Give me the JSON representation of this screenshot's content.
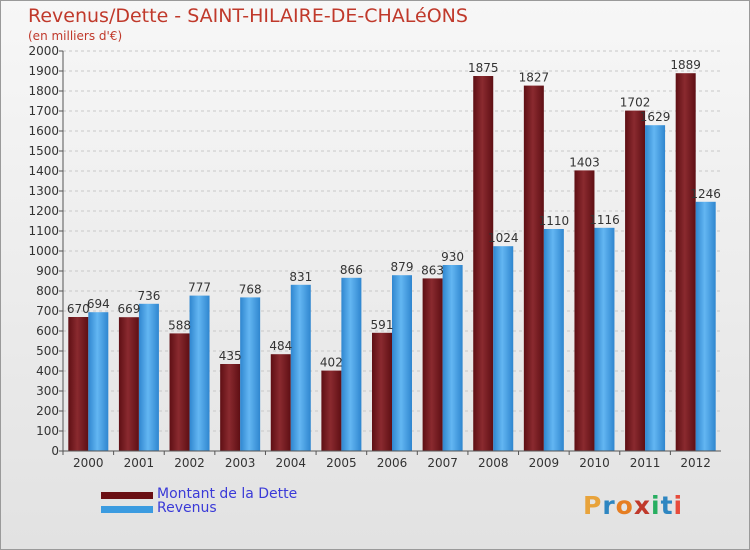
{
  "title": "Revenus/Dette - SAINT-HILAIRE-DE-CHALéONS",
  "subtitle": "(en milliers d'€)",
  "logo": {
    "letters": [
      "P",
      "r",
      "o",
      "x",
      "i",
      "t",
      "i"
    ],
    "colors": [
      "#e8a33b",
      "#2e86c1",
      "#e67e22",
      "#c0392b",
      "#27ae60",
      "#2e86c1",
      "#e74c3c"
    ]
  },
  "chart_data": {
    "type": "bar",
    "title": "Revenus/Dette - SAINT-HILAIRE-DE-CHALéONS",
    "subtitle": "(en milliers d'€)",
    "categories": [
      "2000",
      "2001",
      "2002",
      "2003",
      "2004",
      "2005",
      "2006",
      "2007",
      "2008",
      "2009",
      "2010",
      "2011",
      "2012"
    ],
    "series": [
      {
        "name": "Montant de la Dette",
        "color": "#7a1a1f",
        "values": [
          670,
          669,
          588,
          435,
          484,
          402,
          591,
          863,
          1875,
          1827,
          1403,
          1702,
          1889
        ]
      },
      {
        "name": "Revenus",
        "color": "#3b9be0",
        "values": [
          694,
          736,
          777,
          768,
          831,
          866,
          879,
          930,
          1024,
          1110,
          1116,
          1629,
          1246
        ]
      }
    ],
    "ylim": [
      0,
      2000
    ],
    "ytick_step": 100,
    "grid": true,
    "legend": "bottom-left"
  }
}
